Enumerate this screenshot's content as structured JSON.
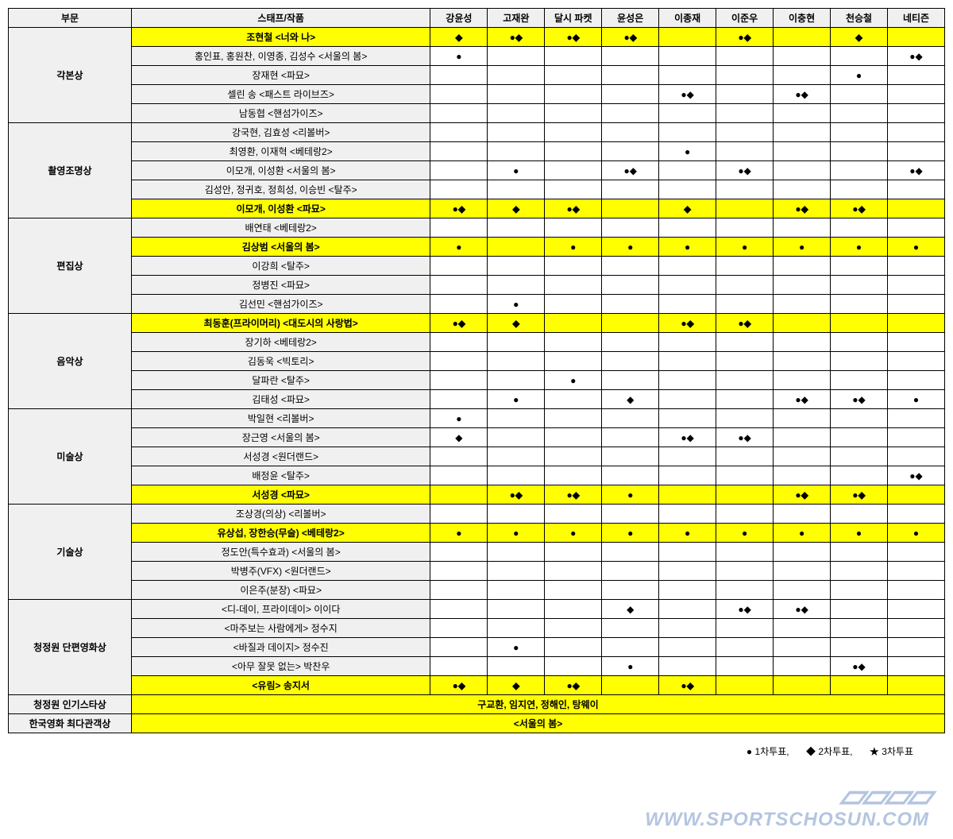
{
  "symbols": {
    "circle": "●",
    "diamond": "◆",
    "star": "★",
    "both": "●◆"
  },
  "header": {
    "category": "부문",
    "work": "스태프/작품",
    "voters": [
      "강윤성",
      "고재완",
      "달시 파켓",
      "윤성은",
      "이종재",
      "이준우",
      "이충현",
      "천승철",
      "네티즌"
    ]
  },
  "legend": {
    "v1": "1차투표,",
    "v2": "2차투표,",
    "v3": "3차투표"
  },
  "watermark": "WWW.SPORTSCHOSUN.COM",
  "categories": [
    {
      "name": "각본상",
      "rows": [
        {
          "work": "조현철 <너와 나>",
          "hl": true,
          "votes": [
            "◆",
            "●◆",
            "●◆",
            "●◆",
            "",
            "●◆",
            "",
            "◆",
            ""
          ]
        },
        {
          "work": "홍인표, 홍원찬, 이영종, 김성수 <서울의 봄>",
          "hl": false,
          "votes": [
            "●",
            "",
            "",
            "",
            "",
            "",
            "",
            "",
            "●◆"
          ]
        },
        {
          "work": "장재현 <파묘>",
          "hl": false,
          "votes": [
            "",
            "",
            "",
            "",
            "",
            "",
            "",
            "●",
            ""
          ]
        },
        {
          "work": "셀린 송 <패스트 라이브즈>",
          "hl": false,
          "votes": [
            "",
            "",
            "",
            "",
            "●◆",
            "",
            "●◆",
            "",
            ""
          ]
        },
        {
          "work": "남동협 <핸섬가이즈>",
          "hl": false,
          "votes": [
            "",
            "",
            "",
            "",
            "",
            "",
            "",
            "",
            ""
          ]
        }
      ]
    },
    {
      "name": "촬영조명상",
      "rows": [
        {
          "work": "강국현, 김효성 <리볼버>",
          "hl": false,
          "votes": [
            "",
            "",
            "",
            "",
            "",
            "",
            "",
            "",
            ""
          ]
        },
        {
          "work": "최영환, 이재혁 <베테랑2>",
          "hl": false,
          "votes": [
            "",
            "",
            "",
            "",
            "●",
            "",
            "",
            "",
            ""
          ]
        },
        {
          "work": "이모개, 이성환 <서울의 봄>",
          "hl": false,
          "votes": [
            "",
            "●",
            "",
            "●◆",
            "",
            "●◆",
            "",
            "",
            "●◆"
          ]
        },
        {
          "work": "김성안, 정귀호, 정희성, 이승빈 <탈주>",
          "hl": false,
          "votes": [
            "",
            "",
            "",
            "",
            "",
            "",
            "",
            "",
            ""
          ]
        },
        {
          "work": "이모개, 이성환 <파묘>",
          "hl": true,
          "votes": [
            "●◆",
            "◆",
            "●◆",
            "",
            "◆",
            "",
            "●◆",
            "●◆",
            ""
          ]
        }
      ]
    },
    {
      "name": "편집상",
      "rows": [
        {
          "work": "배연태 <베테랑2>",
          "hl": false,
          "votes": [
            "",
            "",
            "",
            "",
            "",
            "",
            "",
            "",
            ""
          ]
        },
        {
          "work": "김상범 <서울의 봄>",
          "hl": true,
          "votes": [
            "●",
            "",
            "●",
            "●",
            "●",
            "●",
            "●",
            "●",
            "●"
          ]
        },
        {
          "work": "이강희 <탈주>",
          "hl": false,
          "votes": [
            "",
            "",
            "",
            "",
            "",
            "",
            "",
            "",
            ""
          ]
        },
        {
          "work": "정병진 <파묘>",
          "hl": false,
          "votes": [
            "",
            "",
            "",
            "",
            "",
            "",
            "",
            "",
            ""
          ]
        },
        {
          "work": "김선민 <핸섬가이즈>",
          "hl": false,
          "votes": [
            "",
            "●",
            "",
            "",
            "",
            "",
            "",
            "",
            ""
          ]
        }
      ]
    },
    {
      "name": "음악상",
      "rows": [
        {
          "work": "최동훈(프라이머리) <대도시의 사랑법>",
          "hl": true,
          "votes": [
            "●◆",
            "◆",
            "",
            "",
            "●◆",
            "●◆",
            "",
            "",
            ""
          ]
        },
        {
          "work": "장기하 <베테랑2>",
          "hl": false,
          "votes": [
            "",
            "",
            "",
            "",
            "",
            "",
            "",
            "",
            ""
          ]
        },
        {
          "work": "김동욱 <빅토리>",
          "hl": false,
          "votes": [
            "",
            "",
            "",
            "",
            "",
            "",
            "",
            "",
            ""
          ]
        },
        {
          "work": "달파란 <탈주>",
          "hl": false,
          "votes": [
            "",
            "",
            "●",
            "",
            "",
            "",
            "",
            "",
            ""
          ]
        },
        {
          "work": "김태성 <파묘>",
          "hl": false,
          "votes": [
            "",
            "●",
            "",
            "◆",
            "",
            "",
            "●◆",
            "●◆",
            "●"
          ]
        }
      ]
    },
    {
      "name": "미술상",
      "rows": [
        {
          "work": "박일현 <리볼버>",
          "hl": false,
          "votes": [
            "●",
            "",
            "",
            "",
            "",
            "",
            "",
            "",
            ""
          ]
        },
        {
          "work": "장근영 <서울의 봄>",
          "hl": false,
          "votes": [
            "◆",
            "",
            "",
            "",
            "●◆",
            "●◆",
            "",
            "",
            ""
          ]
        },
        {
          "work": "서성경 <원더랜드>",
          "hl": false,
          "votes": [
            "",
            "",
            "",
            "",
            "",
            "",
            "",
            "",
            ""
          ]
        },
        {
          "work": "배정윤 <탈주>",
          "hl": false,
          "votes": [
            "",
            "",
            "",
            "",
            "",
            "",
            "",
            "",
            "●◆"
          ]
        },
        {
          "work": "서성경 <파묘>",
          "hl": true,
          "votes": [
            "",
            "●◆",
            "●◆",
            "●",
            "",
            "",
            "●◆",
            "●◆",
            ""
          ]
        }
      ]
    },
    {
      "name": "기술상",
      "rows": [
        {
          "work": "조상경(의상) <리볼버>",
          "hl": false,
          "votes": [
            "",
            "",
            "",
            "",
            "",
            "",
            "",
            "",
            ""
          ]
        },
        {
          "work": "유상섭, 장한승(무술) <베테랑2>",
          "hl": true,
          "votes": [
            "●",
            "●",
            "●",
            "●",
            "●",
            "●",
            "●",
            "●",
            "●"
          ]
        },
        {
          "work": "정도안(특수효과) <서울의 봄>",
          "hl": false,
          "votes": [
            "",
            "",
            "",
            "",
            "",
            "",
            "",
            "",
            ""
          ]
        },
        {
          "work": "박병주(VFX) <원더랜드>",
          "hl": false,
          "votes": [
            "",
            "",
            "",
            "",
            "",
            "",
            "",
            "",
            ""
          ]
        },
        {
          "work": "이은주(분장) <파묘>",
          "hl": false,
          "votes": [
            "",
            "",
            "",
            "",
            "",
            "",
            "",
            "",
            ""
          ]
        }
      ]
    },
    {
      "name": "청정원 단편영화상",
      "rows": [
        {
          "work": "<디-데이, 프라이데이> 이이다",
          "hl": false,
          "votes": [
            "",
            "",
            "",
            "◆",
            "",
            "●◆",
            "●◆",
            "",
            ""
          ]
        },
        {
          "work": "<마주보는 사람에게> 정수지",
          "hl": false,
          "votes": [
            "",
            "",
            "",
            "",
            "",
            "",
            "",
            "",
            ""
          ]
        },
        {
          "work": "<바질과 데이지> 정수진",
          "hl": false,
          "votes": [
            "",
            "●",
            "",
            "",
            "",
            "",
            "",
            "",
            ""
          ]
        },
        {
          "work": "<아무 잘못 없는> 박찬우",
          "hl": false,
          "votes": [
            "",
            "",
            "",
            "●",
            "",
            "",
            "",
            "●◆",
            ""
          ]
        },
        {
          "work": "<유림> 송지서",
          "hl": true,
          "votes": [
            "●◆",
            "◆",
            "●◆",
            "",
            "●◆",
            "",
            "",
            "",
            ""
          ]
        }
      ]
    }
  ],
  "popularity": {
    "name": "청정원 인기스타상",
    "value": "구교환, 임지연, 정해인, 탕웨이"
  },
  "audience": {
    "name": "한국영화 최다관객상",
    "value": "<서울의 봄>"
  }
}
